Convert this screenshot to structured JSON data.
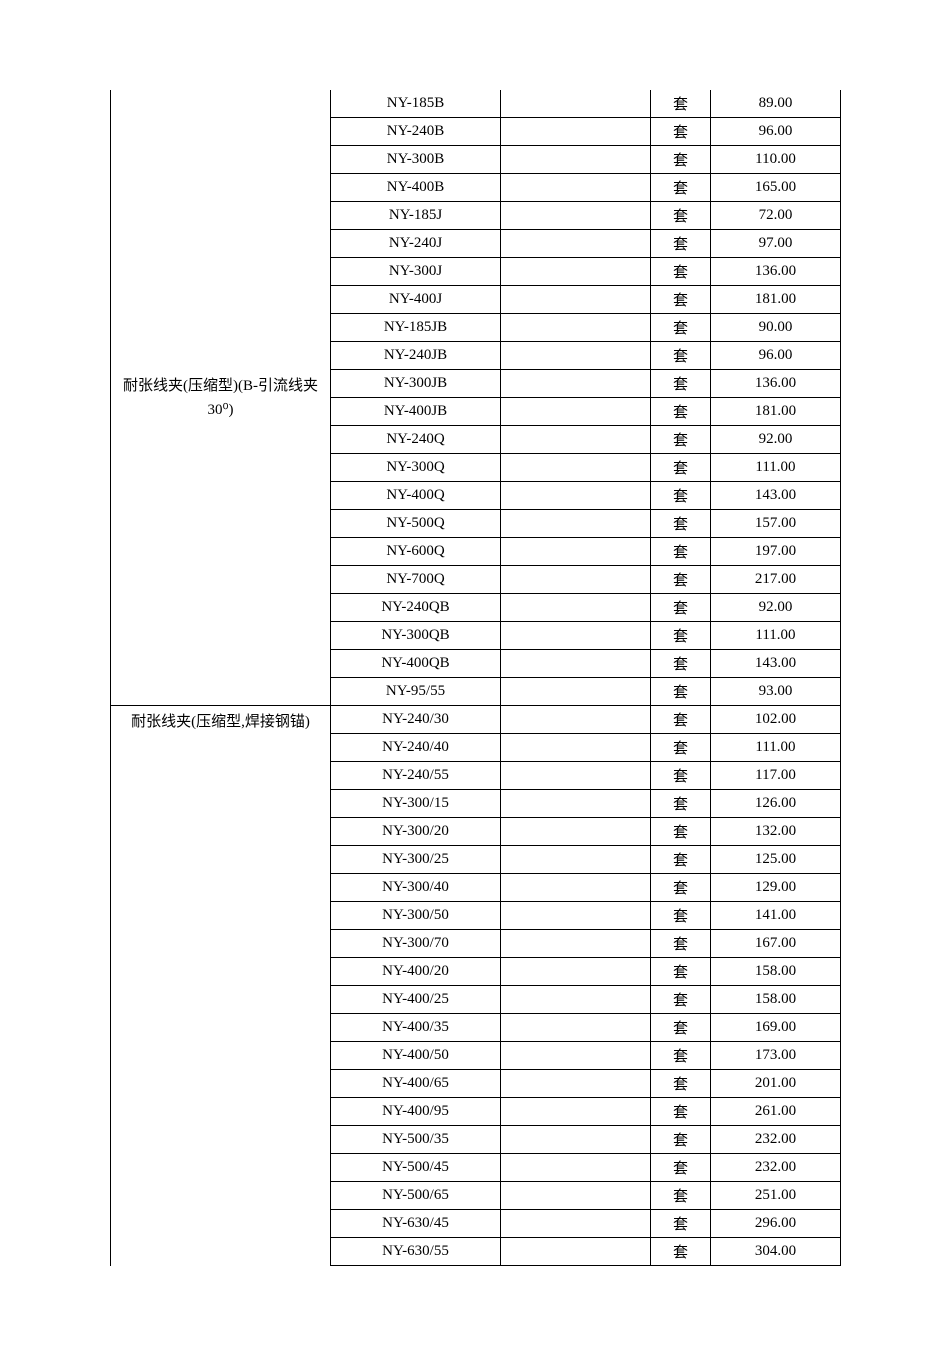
{
  "categories": {
    "cat1": "耐张线夹(压缩型)(B-引流线夹 30⁰)",
    "cat2": "耐张线夹(压缩型,焊接钢锚)"
  },
  "unit": "套",
  "rows": [
    {
      "model": "NY-185B",
      "price": "89.00",
      "catStart": false,
      "catEnd": false
    },
    {
      "model": "NY-240B",
      "price": "96.00"
    },
    {
      "model": "NY-300B",
      "price": "110.00"
    },
    {
      "model": "NY-400B",
      "price": "165.00"
    },
    {
      "model": "NY-185J",
      "price": "72.00"
    },
    {
      "model": "NY-240J",
      "price": "97.00"
    },
    {
      "model": "NY-300J",
      "price": "136.00"
    },
    {
      "model": "NY-400J",
      "price": "181.00"
    },
    {
      "model": "NY-185JB",
      "price": "90.00"
    },
    {
      "model": "NY-240JB",
      "price": "96.00"
    },
    {
      "model": "NY-300JB",
      "price": "136.00"
    },
    {
      "model": "NY-400JB",
      "price": "181.00"
    },
    {
      "model": "NY-240Q",
      "price": "92.00"
    },
    {
      "model": "NY-300Q",
      "price": "111.00"
    },
    {
      "model": "NY-400Q",
      "price": "143.00"
    },
    {
      "model": "NY-500Q",
      "price": "157.00"
    },
    {
      "model": "NY-600Q",
      "price": "197.00"
    },
    {
      "model": "NY-700Q",
      "price": "217.00"
    },
    {
      "model": "NY-240QB",
      "price": "92.00"
    },
    {
      "model": "NY-300QB",
      "price": "111.00"
    },
    {
      "model": "NY-400QB",
      "price": "143.00"
    },
    {
      "model": "NY-95/55",
      "price": "93.00"
    },
    {
      "model": "NY-240/30",
      "price": "102.00"
    },
    {
      "model": "NY-240/40",
      "price": "111.00"
    },
    {
      "model": "NY-240/55",
      "price": "117.00"
    },
    {
      "model": "NY-300/15",
      "price": "126.00"
    },
    {
      "model": "NY-300/20",
      "price": "132.00"
    },
    {
      "model": "NY-300/25",
      "price": "125.00"
    },
    {
      "model": "NY-300/40",
      "price": "129.00"
    },
    {
      "model": "NY-300/50",
      "price": "141.00"
    },
    {
      "model": "NY-300/70",
      "price": "167.00"
    },
    {
      "model": "NY-400/20",
      "price": "158.00"
    },
    {
      "model": "NY-400/25",
      "price": "158.00"
    },
    {
      "model": "NY-400/35",
      "price": "169.00"
    },
    {
      "model": "NY-400/50",
      "price": "173.00"
    },
    {
      "model": "NY-400/65",
      "price": "201.00"
    },
    {
      "model": "NY-400/95",
      "price": "261.00"
    },
    {
      "model": "NY-500/35",
      "price": "232.00"
    },
    {
      "model": "NY-500/45",
      "price": "232.00"
    },
    {
      "model": "NY-500/65",
      "price": "251.00"
    },
    {
      "model": "NY-630/45",
      "price": "296.00"
    },
    {
      "model": "NY-630/55",
      "price": "304.00"
    }
  ],
  "cat1_span": 22,
  "cat2_start": 22,
  "cat1_text_row": 13
}
